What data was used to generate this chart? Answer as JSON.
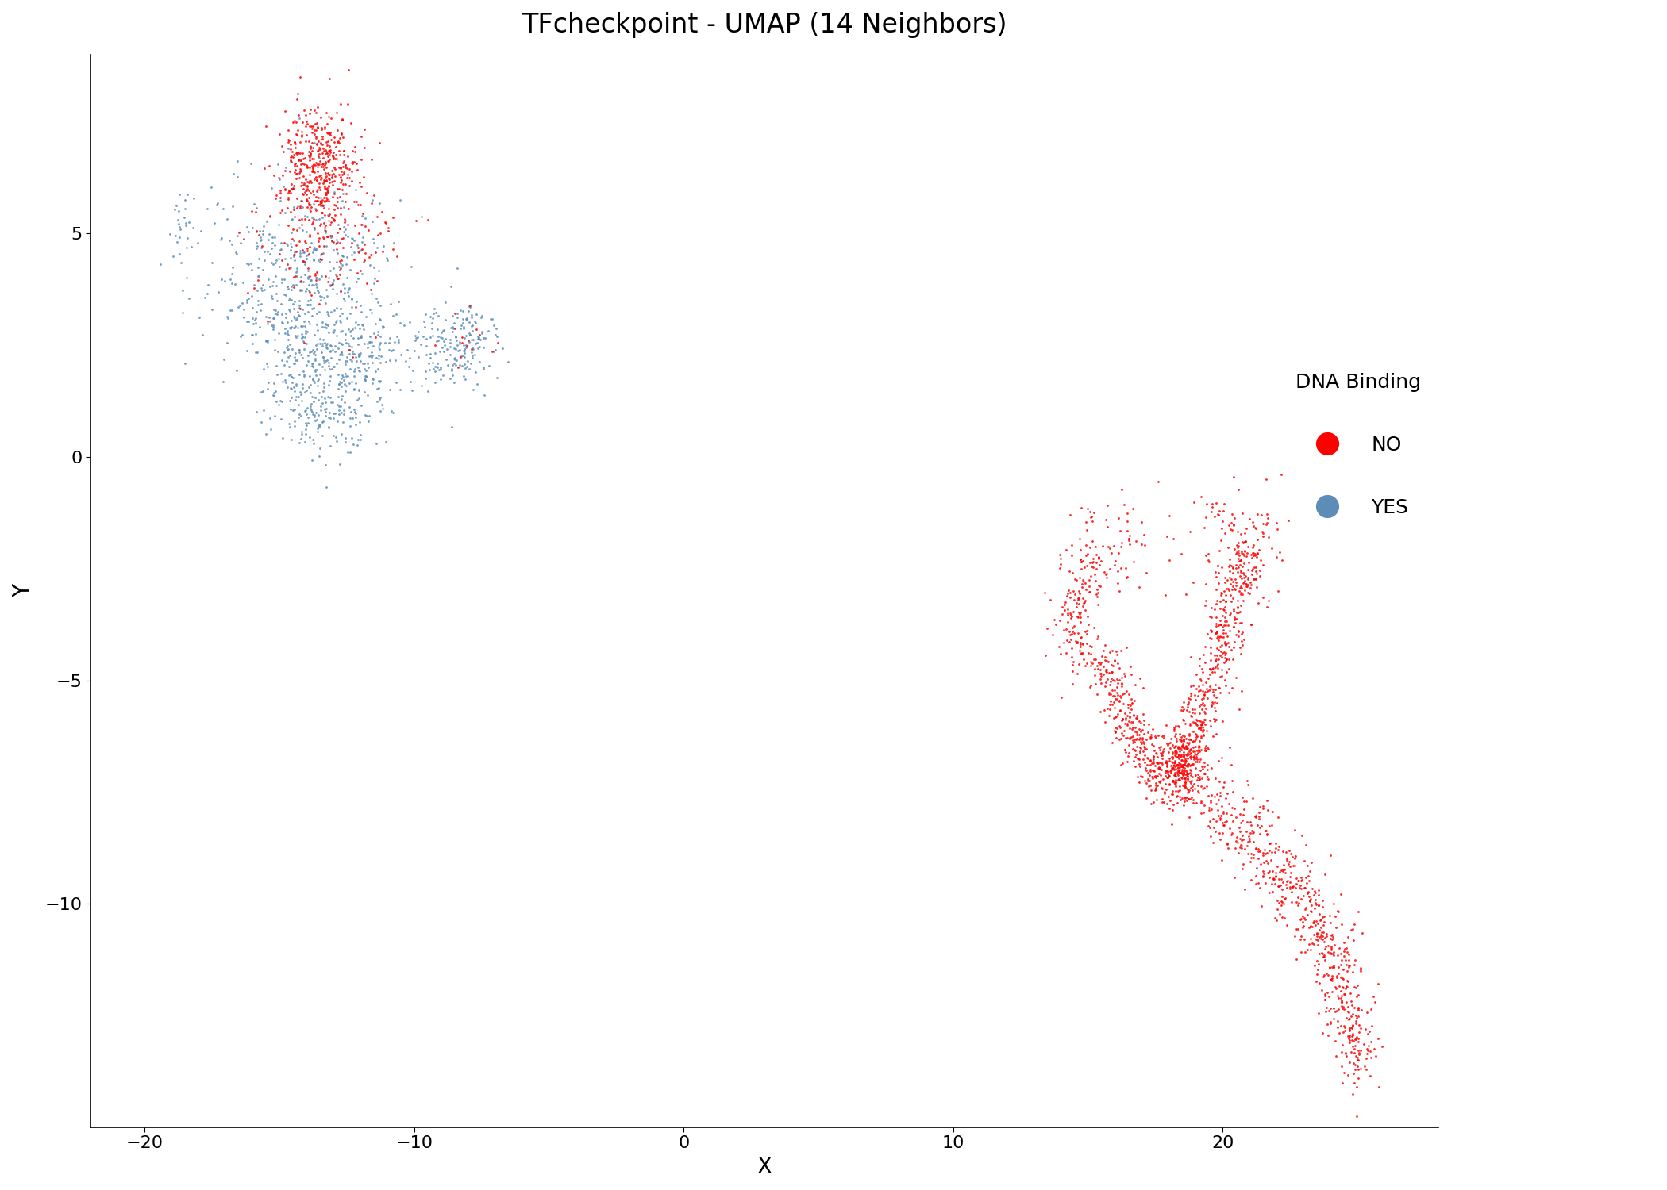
{
  "title": "TFcheckpoint - UMAP (14 Neighbors)",
  "xlabel": "X",
  "ylabel": "Y",
  "xlim": [
    -22,
    28
  ],
  "ylim": [
    -15,
    9
  ],
  "xticks": [
    -20,
    -10,
    0,
    10,
    20
  ],
  "yticks": [
    -10,
    -5,
    0,
    5
  ],
  "color_no": "#FF0000",
  "color_yes": "#5B8DB8",
  "point_size": 4,
  "alpha": 0.85,
  "legend_title": "DNA Binding",
  "legend_no": "NO",
  "legend_yes": "YES",
  "title_fontsize": 24,
  "axis_label_fontsize": 20,
  "tick_fontsize": 16,
  "legend_fontsize": 18,
  "background_color": "#FFFFFF"
}
